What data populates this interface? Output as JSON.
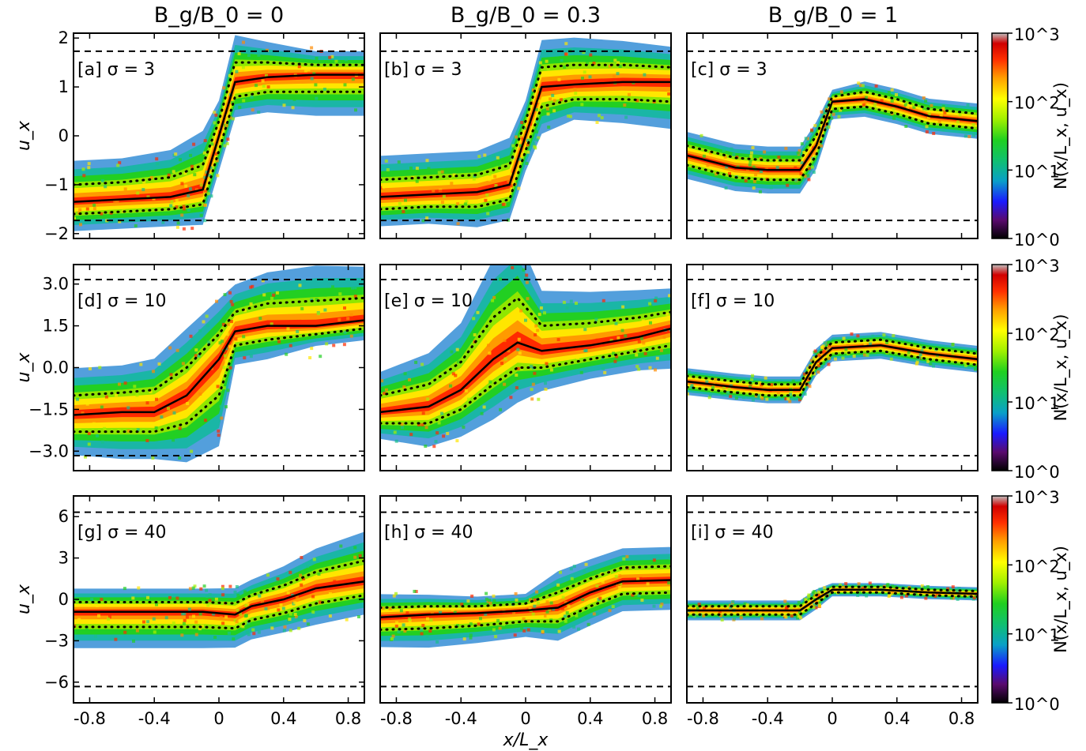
{
  "column_titles": [
    "B_g/B_0 = 0",
    "B_g/B_0 = 0.3",
    "B_g/B_0 = 1"
  ],
  "xlabel": "x/L_x",
  "ylabel": "u_x",
  "colorbar": {
    "label": "N(x/L_x, u_x)",
    "ticks": [
      "10^0",
      "10^1",
      "10^2",
      "10^3"
    ],
    "scale": "log",
    "range": [
      1,
      1000
    ],
    "colormap": [
      "#000000",
      "#5a0a6e",
      "#1a1aff",
      "#0aa0c8",
      "#10c070",
      "#20d020",
      "#a0f000",
      "#ffff00",
      "#ffa000",
      "#ff3000",
      "#d00000",
      "#c0c0c0"
    ]
  },
  "chart_data": [
    {
      "type": "heatmap",
      "label": "[a]",
      "sigma": "3",
      "xlim": [
        -0.9,
        0.9
      ],
      "ylim": [
        -2.1,
        2.1
      ],
      "yticks": [
        "2",
        "1",
        "0",
        "−1",
        "−2"
      ],
      "ytick_values": [
        2,
        1,
        0,
        -1,
        -2
      ],
      "dashed_lines": [
        1.73,
        -1.73
      ],
      "mean_x": [
        -0.9,
        -0.6,
        -0.3,
        -0.1,
        0.0,
        0.1,
        0.3,
        0.6,
        0.9
      ],
      "mean_y": [
        -1.35,
        -1.3,
        -1.25,
        -1.1,
        0.0,
        1.1,
        1.2,
        1.25,
        1.25
      ],
      "upper_dotted_y": [
        -1.0,
        -0.95,
        -0.85,
        -0.6,
        0.3,
        1.5,
        1.5,
        1.45,
        1.45
      ],
      "lower_dotted_y": [
        -1.6,
        -1.55,
        -1.5,
        -1.4,
        -0.3,
        0.8,
        0.9,
        0.9,
        0.9
      ]
    },
    {
      "type": "heatmap",
      "label": "[b]",
      "sigma": "3",
      "xlim": [
        -0.9,
        0.9
      ],
      "ylim": [
        -2.1,
        2.1
      ],
      "yticks": [],
      "ytick_values": [],
      "dashed_lines": [
        1.73,
        -1.73
      ],
      "mean_x": [
        -0.9,
        -0.6,
        -0.3,
        -0.1,
        0.0,
        0.1,
        0.3,
        0.6,
        0.9
      ],
      "mean_y": [
        -1.25,
        -1.2,
        -1.15,
        -1.0,
        0.0,
        1.0,
        1.05,
        1.1,
        1.1
      ],
      "upper_dotted_y": [
        -0.9,
        -0.85,
        -0.8,
        -0.6,
        0.3,
        1.4,
        1.45,
        1.45,
        1.4
      ],
      "lower_dotted_y": [
        -1.5,
        -1.45,
        -1.45,
        -1.3,
        -0.3,
        0.6,
        0.75,
        0.75,
        0.7
      ]
    },
    {
      "type": "heatmap",
      "label": "[c]",
      "sigma": "3",
      "xlim": [
        -0.9,
        0.9
      ],
      "ylim": [
        -2.1,
        2.1
      ],
      "yticks": [],
      "ytick_values": [],
      "dashed_lines": [
        1.73,
        -1.73
      ],
      "mean_x": [
        -0.9,
        -0.6,
        -0.4,
        -0.2,
        -0.1,
        0.0,
        0.2,
        0.4,
        0.6,
        0.9
      ],
      "mean_y": [
        -0.4,
        -0.65,
        -0.7,
        -0.7,
        -0.2,
        0.7,
        0.75,
        0.6,
        0.4,
        0.3
      ],
      "upper_dotted_y": [
        -0.2,
        -0.45,
        -0.5,
        -0.5,
        0.0,
        0.8,
        0.9,
        0.75,
        0.55,
        0.45
      ],
      "lower_dotted_y": [
        -0.6,
        -0.85,
        -0.9,
        -0.9,
        -0.4,
        0.55,
        0.6,
        0.45,
        0.25,
        0.15
      ]
    },
    {
      "type": "heatmap",
      "label": "[d]",
      "sigma": "10",
      "xlim": [
        -0.9,
        0.9
      ],
      "ylim": [
        -3.7,
        3.7
      ],
      "yticks": [
        "3.0",
        "1.5",
        "0.0",
        "−1.5",
        "−3.0"
      ],
      "ytick_values": [
        3,
        1.5,
        0,
        -1.5,
        -3
      ],
      "dashed_lines": [
        3.16,
        -3.16
      ],
      "mean_x": [
        -0.9,
        -0.6,
        -0.4,
        -0.2,
        0.0,
        0.1,
        0.3,
        0.6,
        0.9
      ],
      "mean_y": [
        -1.7,
        -1.6,
        -1.6,
        -1.0,
        0.3,
        1.3,
        1.5,
        1.5,
        1.7
      ],
      "upper_dotted_y": [
        -1.0,
        -0.9,
        -0.8,
        0.0,
        1.2,
        2.0,
        2.3,
        2.4,
        2.5
      ],
      "lower_dotted_y": [
        -2.3,
        -2.3,
        -2.3,
        -2.0,
        -1.0,
        0.8,
        1.0,
        1.2,
        1.4
      ]
    },
    {
      "type": "heatmap",
      "label": "[e]",
      "sigma": "10",
      "xlim": [
        -0.9,
        0.9
      ],
      "ylim": [
        -3.7,
        3.7
      ],
      "yticks": [],
      "ytick_values": [],
      "dashed_lines": [
        3.16,
        -3.16
      ],
      "mean_x": [
        -0.9,
        -0.6,
        -0.4,
        -0.2,
        -0.05,
        0.1,
        0.4,
        0.7,
        0.9
      ],
      "mean_y": [
        -1.6,
        -1.4,
        -0.8,
        0.3,
        0.9,
        0.6,
        0.8,
        1.1,
        1.4
      ],
      "upper_dotted_y": [
        -1.0,
        -0.6,
        0.2,
        1.8,
        2.5,
        1.5,
        1.6,
        1.8,
        2.0
      ],
      "lower_dotted_y": [
        -2.0,
        -2.0,
        -1.5,
        -0.6,
        0.0,
        0.0,
        0.3,
        0.6,
        0.8
      ]
    },
    {
      "type": "heatmap",
      "label": "[f]",
      "sigma": "10",
      "xlim": [
        -0.9,
        0.9
      ],
      "ylim": [
        -3.7,
        3.7
      ],
      "yticks": [],
      "ytick_values": [],
      "dashed_lines": [
        3.16,
        -3.16
      ],
      "mean_x": [
        -0.9,
        -0.6,
        -0.4,
        -0.2,
        -0.1,
        0.0,
        0.3,
        0.6,
        0.9
      ],
      "mean_y": [
        -0.5,
        -0.7,
        -0.8,
        -0.8,
        0.2,
        0.7,
        0.8,
        0.5,
        0.3
      ],
      "upper_dotted_y": [
        -0.3,
        -0.5,
        -0.6,
        -0.6,
        0.4,
        0.9,
        1.0,
        0.7,
        0.5
      ],
      "lower_dotted_y": [
        -0.7,
        -0.9,
        -1.0,
        -1.0,
        0.0,
        0.5,
        0.6,
        0.3,
        0.1
      ]
    },
    {
      "type": "heatmap",
      "label": "[g]",
      "sigma": "40",
      "xlim": [
        -0.9,
        0.9
      ],
      "ylim": [
        -7.5,
        7.5
      ],
      "yticks": [
        "6",
        "3",
        "0",
        "−3",
        "−6"
      ],
      "ytick_values": [
        6,
        3,
        0,
        -3,
        -6
      ],
      "dashed_lines": [
        6.32,
        -6.32
      ],
      "mean_x": [
        -0.9,
        -0.6,
        -0.3,
        -0.1,
        0.1,
        0.2,
        0.4,
        0.6,
        0.9
      ],
      "mean_y": [
        -0.9,
        -0.9,
        -0.9,
        -0.9,
        -1.1,
        -0.5,
        0.0,
        0.8,
        1.3
      ],
      "upper_dotted_y": [
        -0.2,
        -0.2,
        -0.2,
        -0.2,
        -0.3,
        0.3,
        1.0,
        2.0,
        2.8
      ],
      "lower_dotted_y": [
        -2.0,
        -2.0,
        -2.0,
        -2.0,
        -2.1,
        -1.5,
        -1.0,
        -0.3,
        0.3
      ]
    },
    {
      "type": "heatmap",
      "label": "[h]",
      "sigma": "40",
      "xlim": [
        -0.9,
        0.9
      ],
      "ylim": [
        -7.5,
        7.5
      ],
      "yticks": [],
      "ytick_values": [],
      "dashed_lines": [
        6.32,
        -6.32
      ],
      "mean_x": [
        -0.9,
        -0.6,
        -0.3,
        0.0,
        0.2,
        0.4,
        0.6,
        0.9
      ],
      "mean_y": [
        -1.3,
        -1.1,
        -1.0,
        -0.8,
        -0.6,
        0.5,
        1.3,
        1.4
      ],
      "upper_dotted_y": [
        -0.6,
        -0.5,
        -0.5,
        -0.3,
        0.5,
        1.5,
        2.3,
        2.4
      ],
      "lower_dotted_y": [
        -2.2,
        -2.1,
        -1.9,
        -1.6,
        -1.6,
        -0.5,
        0.4,
        0.5
      ]
    },
    {
      "type": "heatmap",
      "label": "[i]",
      "sigma": "40",
      "xlim": [
        -0.9,
        0.9
      ],
      "ylim": [
        -7.5,
        7.5
      ],
      "yticks": [],
      "ytick_values": [],
      "dashed_lines": [
        6.32,
        -6.32
      ],
      "mean_x": [
        -0.9,
        -0.6,
        -0.3,
        -0.2,
        -0.1,
        0.0,
        0.3,
        0.6,
        0.9
      ],
      "mean_y": [
        -0.8,
        -0.8,
        -0.8,
        -0.8,
        0.0,
        0.7,
        0.7,
        0.5,
        0.4
      ],
      "upper_dotted_y": [
        -0.5,
        -0.5,
        -0.5,
        -0.5,
        0.3,
        0.9,
        0.9,
        0.7,
        0.6
      ],
      "lower_dotted_y": [
        -1.1,
        -1.1,
        -1.1,
        -1.1,
        -0.3,
        0.5,
        0.5,
        0.3,
        0.2
      ]
    }
  ],
  "xticks": [
    "-0.8",
    "-0.4",
    "0",
    "0.4",
    "0.8"
  ],
  "xtick_values": [
    -0.8,
    -0.4,
    0,
    0.4,
    0.8
  ]
}
